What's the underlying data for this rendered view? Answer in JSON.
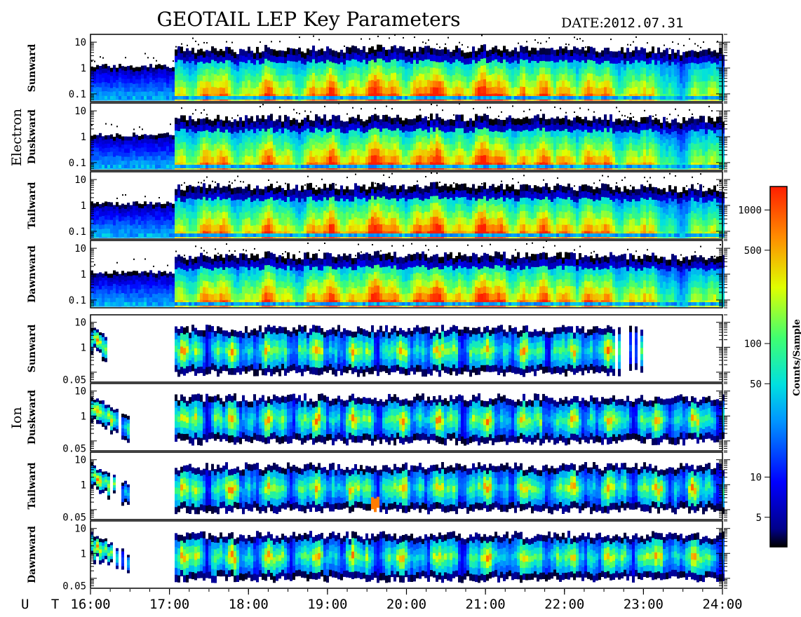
{
  "header": {
    "title": "GEOTAIL LEP Key Parameters",
    "date_label": "DATE:",
    "date_value": "2012.07.31"
  },
  "chart_data": {
    "type": "heatmap",
    "title": "GEOTAIL LEP Key Parameters",
    "x_axis": {
      "label": "U T",
      "range": [
        "16:00",
        "24:00"
      ],
      "tick_labels": [
        "16:00",
        "17:00",
        "18:00",
        "19:00",
        "20:00",
        "21:00",
        "22:00",
        "23:00",
        "24:00"
      ],
      "scale": "linear"
    },
    "groups": [
      {
        "name": "Electron",
        "y_scale": "log",
        "y_range": [
          0.05,
          20
        ],
        "y_ticks": [
          "10",
          "1",
          "0.1"
        ],
        "panels": [
          "Sunward",
          "Duskward",
          "Tailward",
          "Dawnward"
        ]
      },
      {
        "name": "Ion",
        "y_scale": "log",
        "y_range": [
          0.04,
          20
        ],
        "y_ticks": [
          "10",
          "1",
          "0.05"
        ],
        "panels": [
          "Sunward",
          "Duskward",
          "Tailward",
          "Dawnward"
        ]
      }
    ],
    "colorbar": {
      "label": "Counts/Sample",
      "scale": "log",
      "range": [
        3,
        1500
      ],
      "ticks": [
        "1000",
        "500",
        "100",
        "50",
        "10",
        "5"
      ],
      "colormap": "jet"
    }
  }
}
